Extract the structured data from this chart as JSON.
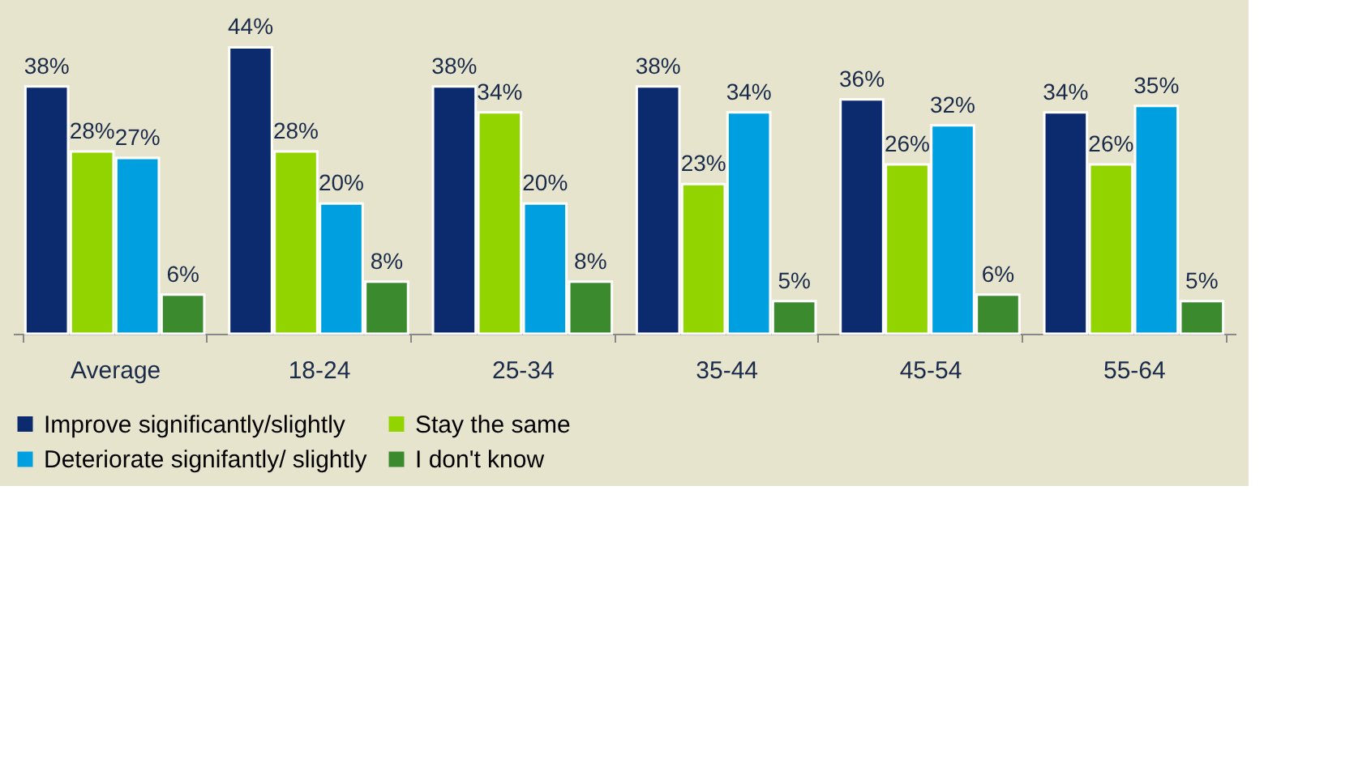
{
  "chart_data": {
    "type": "bar",
    "categories": [
      "Average",
      "18-24",
      "25-34",
      "35-44",
      "45-54",
      "55-64"
    ],
    "series": [
      {
        "name": "Improve significantly/slightly",
        "color": "#0c2a6e",
        "values": [
          38,
          44,
          38,
          38,
          36,
          34
        ],
        "value_labels": [
          "38%",
          "44%",
          "38%",
          "38%",
          "36%",
          "34%"
        ]
      },
      {
        "name": "Stay the same",
        "color": "#92d400",
        "values": [
          28,
          28,
          34,
          23,
          26,
          26
        ],
        "value_labels": [
          "28%",
          "28%",
          "34%",
          "23%",
          "26%",
          "26%"
        ]
      },
      {
        "name": "Deteriorate signifantly/ slightly",
        "color": "#00a0e0",
        "values": [
          27,
          20,
          20,
          34,
          32,
          35
        ],
        "value_labels": [
          "27%",
          "20%",
          "20%",
          "34%",
          "32%",
          "35%"
        ]
      },
      {
        "name": "I don't know",
        "color": "#3c8a2e",
        "values": [
          6,
          8,
          8,
          5,
          6,
          5
        ],
        "value_labels": [
          "6%",
          "8%",
          "8%",
          "5%",
          "6%",
          "5%"
        ]
      }
    ],
    "grid": false,
    "legend": "bottom"
  }
}
